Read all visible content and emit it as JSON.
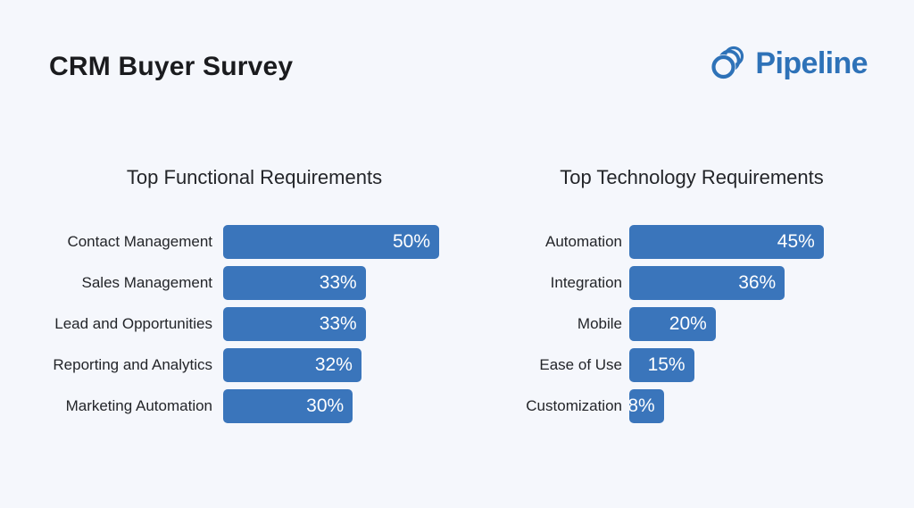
{
  "header": {
    "title": "CRM Buyer Survey",
    "logo_text": "Pipeline"
  },
  "colors": {
    "background": "#f5f7fc",
    "bar": "#3a75bb",
    "bar_text": "#ffffff",
    "heading": "#1a1b1e",
    "label": "#232529",
    "logo": "#2e72b8"
  },
  "chart_data": [
    {
      "type": "bar",
      "orientation": "horizontal",
      "title": "Top Functional Requirements",
      "categories": [
        "Contact Management",
        "Sales Management",
        "Lead and Opportunities",
        "Reporting and Analytics",
        "Marketing Automation"
      ],
      "values": [
        50,
        33,
        33,
        32,
        30
      ],
      "value_labels": [
        "50%",
        "33%",
        "33%",
        "32%",
        "30%"
      ],
      "unit": "%",
      "xlim": [
        0,
        50
      ],
      "bar_color": "#3a75bb",
      "grid": false,
      "legend": false,
      "value_label_position": "inside-end"
    },
    {
      "type": "bar",
      "orientation": "horizontal",
      "title": "Top Technology Requirements",
      "categories": [
        "Automation",
        "Integration",
        "Mobile",
        "Ease of Use",
        "Customization"
      ],
      "values": [
        45,
        36,
        20,
        15,
        8
      ],
      "value_labels": [
        "45%",
        "36%",
        "20%",
        "15%",
        "8%"
      ],
      "unit": "%",
      "xlim": [
        0,
        50
      ],
      "bar_color": "#3a75bb",
      "grid": false,
      "legend": false,
      "value_label_position": "inside-end"
    }
  ]
}
